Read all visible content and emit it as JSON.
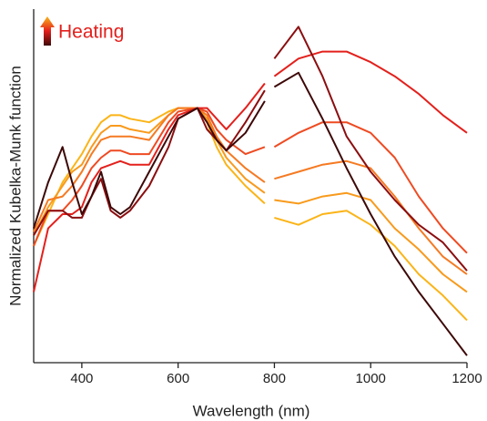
{
  "chart_data": {
    "type": "line",
    "annotation": "Heating",
    "xlabel": "Wavelength (nm)",
    "ylabel": "Normalized Kubelka-Munk function",
    "xlim": [
      300,
      1200
    ],
    "xticks": [
      400,
      600,
      800,
      1000,
      1200
    ],
    "ylim": [
      0,
      1
    ],
    "x": [
      300,
      330,
      360,
      380,
      400,
      420,
      440,
      460,
      480,
      500,
      540,
      580,
      600,
      640,
      660,
      680,
      700,
      740,
      780,
      790,
      800,
      850,
      900,
      950,
      1000,
      1050,
      1100,
      1150,
      1200
    ],
    "series": [
      {
        "color": "#fbb417",
        "values": [
          0.33,
          0.42,
          0.51,
          0.55,
          0.59,
          0.64,
          0.68,
          0.7,
          0.7,
          0.69,
          0.68,
          0.71,
          0.72,
          0.72,
          0.68,
          0.61,
          0.56,
          0.5,
          0.45,
          null,
          0.41,
          0.39,
          0.42,
          0.43,
          0.39,
          0.33,
          0.25,
          0.19,
          0.12
        ]
      },
      {
        "color": "#f89a1c",
        "values": [
          0.36,
          0.44,
          0.5,
          0.54,
          0.56,
          0.61,
          0.65,
          0.67,
          0.67,
          0.66,
          0.65,
          0.7,
          0.72,
          0.72,
          0.69,
          0.63,
          0.58,
          0.52,
          0.48,
          null,
          0.46,
          0.45,
          0.47,
          0.48,
          0.46,
          0.38,
          0.32,
          0.25,
          0.2
        ]
      },
      {
        "color": "#f57a22",
        "values": [
          0.37,
          0.46,
          0.47,
          0.5,
          0.54,
          0.59,
          0.63,
          0.64,
          0.64,
          0.64,
          0.63,
          0.7,
          0.72,
          0.72,
          0.7,
          0.64,
          0.6,
          0.55,
          0.51,
          null,
          0.52,
          0.54,
          0.56,
          0.57,
          0.55,
          0.47,
          0.38,
          0.3,
          0.25
        ]
      },
      {
        "color": "#ee4b22",
        "values": [
          0.33,
          0.43,
          0.43,
          0.46,
          0.5,
          0.55,
          0.58,
          0.6,
          0.6,
          0.59,
          0.59,
          0.68,
          0.71,
          0.72,
          0.71,
          0.66,
          0.63,
          0.59,
          0.61,
          null,
          0.61,
          0.65,
          0.68,
          0.68,
          0.65,
          0.58,
          0.47,
          0.38,
          0.31
        ]
      },
      {
        "color": "#e3201c",
        "values": [
          0.2,
          0.38,
          0.42,
          0.42,
          0.44,
          0.51,
          0.55,
          0.56,
          0.57,
          0.56,
          0.56,
          0.66,
          0.7,
          0.72,
          0.72,
          0.69,
          0.66,
          0.72,
          0.79,
          null,
          0.81,
          0.86,
          0.88,
          0.88,
          0.85,
          0.81,
          0.76,
          0.7,
          0.65
        ]
      },
      {
        "color": "#8b0e10",
        "values": [
          0.36,
          0.43,
          0.43,
          0.41,
          0.41,
          0.47,
          0.52,
          0.43,
          0.41,
          0.43,
          0.5,
          0.61,
          0.69,
          0.72,
          0.66,
          0.63,
          0.6,
          0.68,
          0.77,
          null,
          0.86,
          0.95,
          0.81,
          0.64,
          0.54,
          0.46,
          0.39,
          0.34,
          0.26
        ]
      },
      {
        "color": "#3d0808",
        "values": [
          0.38,
          0.51,
          0.61,
          0.51,
          0.42,
          0.47,
          0.54,
          0.44,
          0.42,
          0.44,
          0.54,
          0.64,
          0.69,
          0.72,
          0.68,
          0.63,
          0.6,
          0.65,
          0.74,
          null,
          0.78,
          0.82,
          0.69,
          0.55,
          0.42,
          0.3,
          0.2,
          0.11,
          0.02
        ]
      }
    ]
  }
}
